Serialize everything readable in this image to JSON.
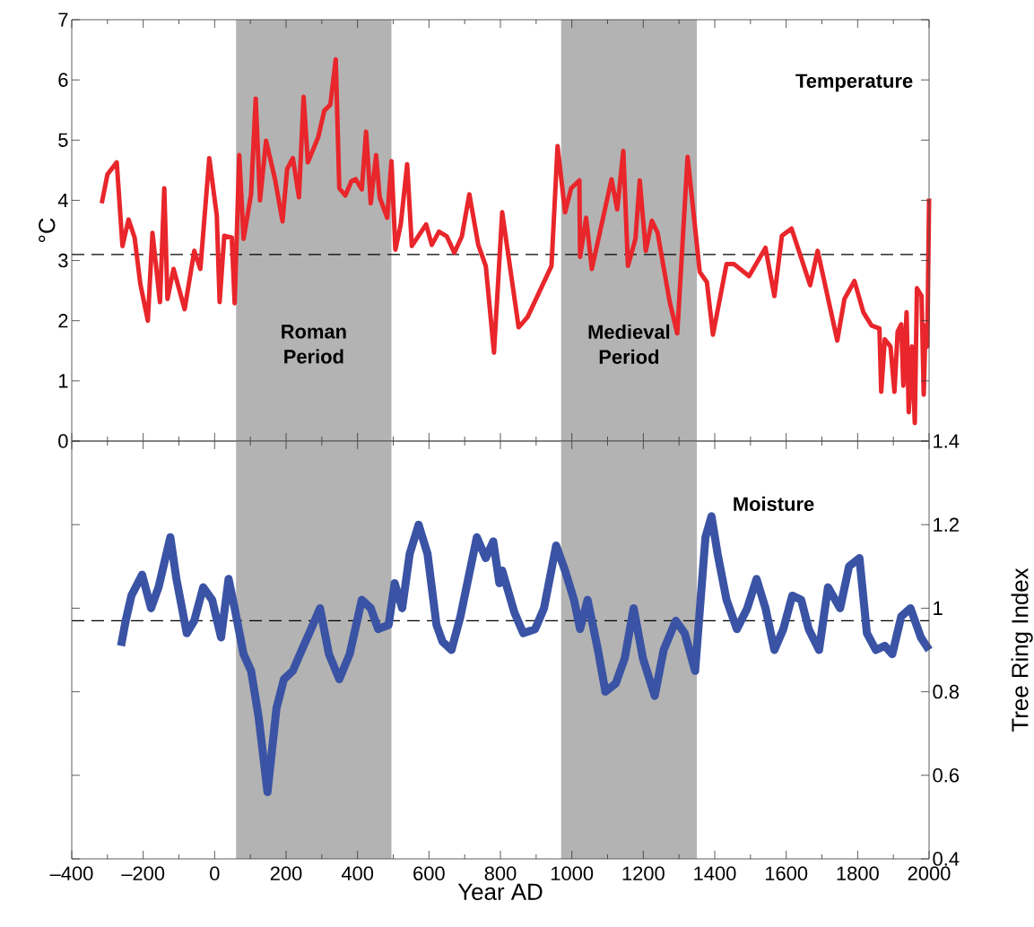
{
  "chart_data": [
    {
      "type": "line",
      "ylabel": "°C",
      "annotations": [
        "Temperature"
      ],
      "tick_labels": "y",
      "line_style": "solid",
      "x": [
        -316,
        -300,
        -274,
        -258,
        -241,
        -224,
        -208,
        -187,
        -174,
        -153,
        -141,
        -132,
        -115,
        -84,
        -57,
        -40,
        -15,
        6,
        14,
        27,
        48,
        56,
        69,
        81,
        102,
        115,
        127,
        144,
        169,
        190,
        203,
        219,
        236,
        249,
        261,
        290,
        307,
        324,
        339,
        349,
        366,
        383,
        395,
        412,
        424,
        437,
        452,
        462,
        483,
        495,
        506,
        521,
        539,
        552,
        592,
        608,
        628,
        650,
        671,
        692,
        713,
        738,
        759,
        782,
        805,
        851,
        876,
        943,
        960,
        981,
        998,
        1021,
        1023,
        1040,
        1056,
        1111,
        1127,
        1144,
        1157,
        1178,
        1190,
        1207,
        1224,
        1240,
        1274,
        1295,
        1324,
        1358,
        1378,
        1395,
        1433,
        1454,
        1496,
        1542,
        1567,
        1588,
        1615,
        1667,
        1688,
        1743,
        1763,
        1791,
        1816,
        1839,
        1861,
        1866,
        1876,
        1892,
        1903,
        1912,
        1922,
        1928,
        1937,
        1943,
        1952,
        1960,
        1966,
        1979,
        1985,
        1990,
        1995,
        2000
      ],
      "series": [
        {
          "color": "#e8262b",
          "values": [
            3.95,
            4.43,
            4.63,
            3.24,
            3.68,
            3.38,
            2.61,
            2.0,
            3.46,
            2.31,
            4.2,
            2.36,
            2.86,
            2.19,
            3.16,
            2.86,
            4.7,
            3.75,
            2.31,
            3.41,
            3.38,
            2.29,
            4.75,
            3.36,
            4.1,
            5.69,
            4.0,
            4.99,
            4.35,
            3.65,
            4.52,
            4.7,
            4.05,
            5.72,
            4.63,
            5.05,
            5.49,
            5.59,
            6.34,
            4.2,
            4.08,
            4.32,
            4.35,
            4.18,
            5.14,
            3.95,
            4.75,
            4.05,
            3.71,
            4.65,
            3.18,
            3.6,
            4.6,
            3.24,
            3.6,
            3.26,
            3.48,
            3.4,
            3.13,
            3.4,
            4.1,
            3.26,
            2.91,
            1.47,
            3.8,
            1.89,
            2.06,
            2.91,
            4.9,
            3.8,
            4.2,
            4.33,
            3.06,
            3.71,
            2.86,
            4.35,
            3.85,
            4.82,
            2.91,
            3.36,
            4.33,
            3.16,
            3.66,
            3.46,
            2.31,
            1.79,
            4.72,
            2.81,
            2.64,
            1.77,
            2.94,
            2.94,
            2.74,
            3.21,
            2.41,
            3.41,
            3.53,
            2.59,
            3.16,
            1.67,
            2.36,
            2.66,
            2.14,
            1.92,
            1.87,
            0.82,
            1.69,
            1.57,
            0.82,
            1.82,
            1.94,
            0.92,
            2.14,
            0.48,
            1.57,
            0.3,
            2.54,
            2.41,
            0.77,
            1.92,
            1.57,
            4.03
          ]
        }
      ],
      "xlim": [
        -400,
        2000
      ],
      "xticks": [
        -400,
        -200,
        0,
        200,
        400,
        600,
        800,
        1000,
        1200,
        1400,
        1600,
        1800,
        2000
      ],
      "ylim": [
        0,
        7
      ],
      "yticks": [
        0,
        1,
        2,
        3,
        4,
        5,
        6,
        7
      ],
      "ref_lines": [
        {
          "axis": "y",
          "value": 3.1,
          "color": "#000000",
          "line_style": "dashed"
        }
      ],
      "bands": [
        {
          "axis": "x",
          "from": 60,
          "to": 495,
          "label": "Roman Period",
          "color": "#b3b3b3"
        },
        {
          "axis": "x",
          "from": 970,
          "to": 1350,
          "label": "Medieval Period",
          "color": "#b3b3b3"
        }
      ]
    },
    {
      "type": "line",
      "xlabel": "Year AD",
      "y2label": "Tree Ring Index",
      "annotations": [
        "Moisture"
      ],
      "line_style": "solid",
      "x": [
        -262,
        -249,
        -233,
        -203,
        -178,
        -157,
        -124,
        -107,
        -78,
        -57,
        -32,
        -7,
        18,
        39,
        56,
        81,
        102,
        123,
        148,
        173,
        194,
        219,
        244,
        270,
        295,
        320,
        349,
        378,
        412,
        437,
        458,
        487,
        504,
        525,
        546,
        571,
        596,
        621,
        638,
        663,
        688,
        717,
        734,
        759,
        780,
        797,
        805,
        839,
        864,
        897,
        922,
        956,
        981,
        1006,
        1023,
        1044,
        1073,
        1094,
        1123,
        1148,
        1173,
        1199,
        1232,
        1257,
        1291,
        1316,
        1345,
        1374,
        1391,
        1408,
        1433,
        1462,
        1491,
        1517,
        1542,
        1567,
        1592,
        1617,
        1642,
        1663,
        1692,
        1717,
        1751,
        1776,
        1805,
        1826,
        1851,
        1876,
        1897,
        1922,
        1948,
        1977,
        2000
      ],
      "series": [
        {
          "color": "#3a53a4",
          "axis": "y2",
          "values": [
            0.91,
            0.97,
            1.03,
            1.08,
            1.0,
            1.05,
            1.17,
            1.07,
            0.94,
            0.97,
            1.05,
            1.02,
            0.93,
            1.07,
            1.0,
            0.89,
            0.85,
            0.74,
            0.56,
            0.76,
            0.83,
            0.85,
            0.9,
            0.95,
            1.0,
            0.89,
            0.83,
            0.89,
            1.02,
            1.0,
            0.95,
            0.96,
            1.06,
            1.0,
            1.13,
            1.2,
            1.13,
            0.96,
            0.92,
            0.9,
            0.98,
            1.1,
            1.17,
            1.12,
            1.16,
            1.06,
            1.09,
            0.99,
            0.94,
            0.95,
            1.0,
            1.15,
            1.09,
            1.02,
            0.95,
            1.02,
            0.9,
            0.8,
            0.82,
            0.88,
            1.0,
            0.88,
            0.79,
            0.9,
            0.97,
            0.94,
            0.85,
            1.17,
            1.22,
            1.13,
            1.02,
            0.95,
            1.0,
            1.07,
            1.0,
            0.9,
            0.95,
            1.03,
            1.02,
            0.95,
            0.9,
            1.05,
            1.0,
            1.1,
            1.12,
            0.94,
            0.9,
            0.91,
            0.89,
            0.98,
            1.0,
            0.93,
            0.9
          ]
        }
      ],
      "xlim": [
        -400,
        2000
      ],
      "xticks": [
        {
          "value": -400,
          "label": "–400"
        },
        {
          "value": -200,
          "label": "–200"
        },
        0,
        200,
        400,
        600,
        800,
        1000,
        1200,
        1400,
        1600,
        1800,
        2000
      ],
      "y2lim": [
        0.4,
        1.4
      ],
      "y2ticks": [
        0.4,
        0.6,
        0.8,
        1,
        1.2,
        1.4
      ],
      "ref_lines": [
        {
          "axis": "y2",
          "value": 0.97,
          "color": "#000000",
          "line_style": "dashed"
        }
      ],
      "bands": [
        {
          "axis": "x",
          "from": 60,
          "to": 495,
          "color": "#b3b3b3"
        },
        {
          "axis": "x",
          "from": 970,
          "to": 1350,
          "color": "#b3b3b3"
        }
      ]
    }
  ]
}
